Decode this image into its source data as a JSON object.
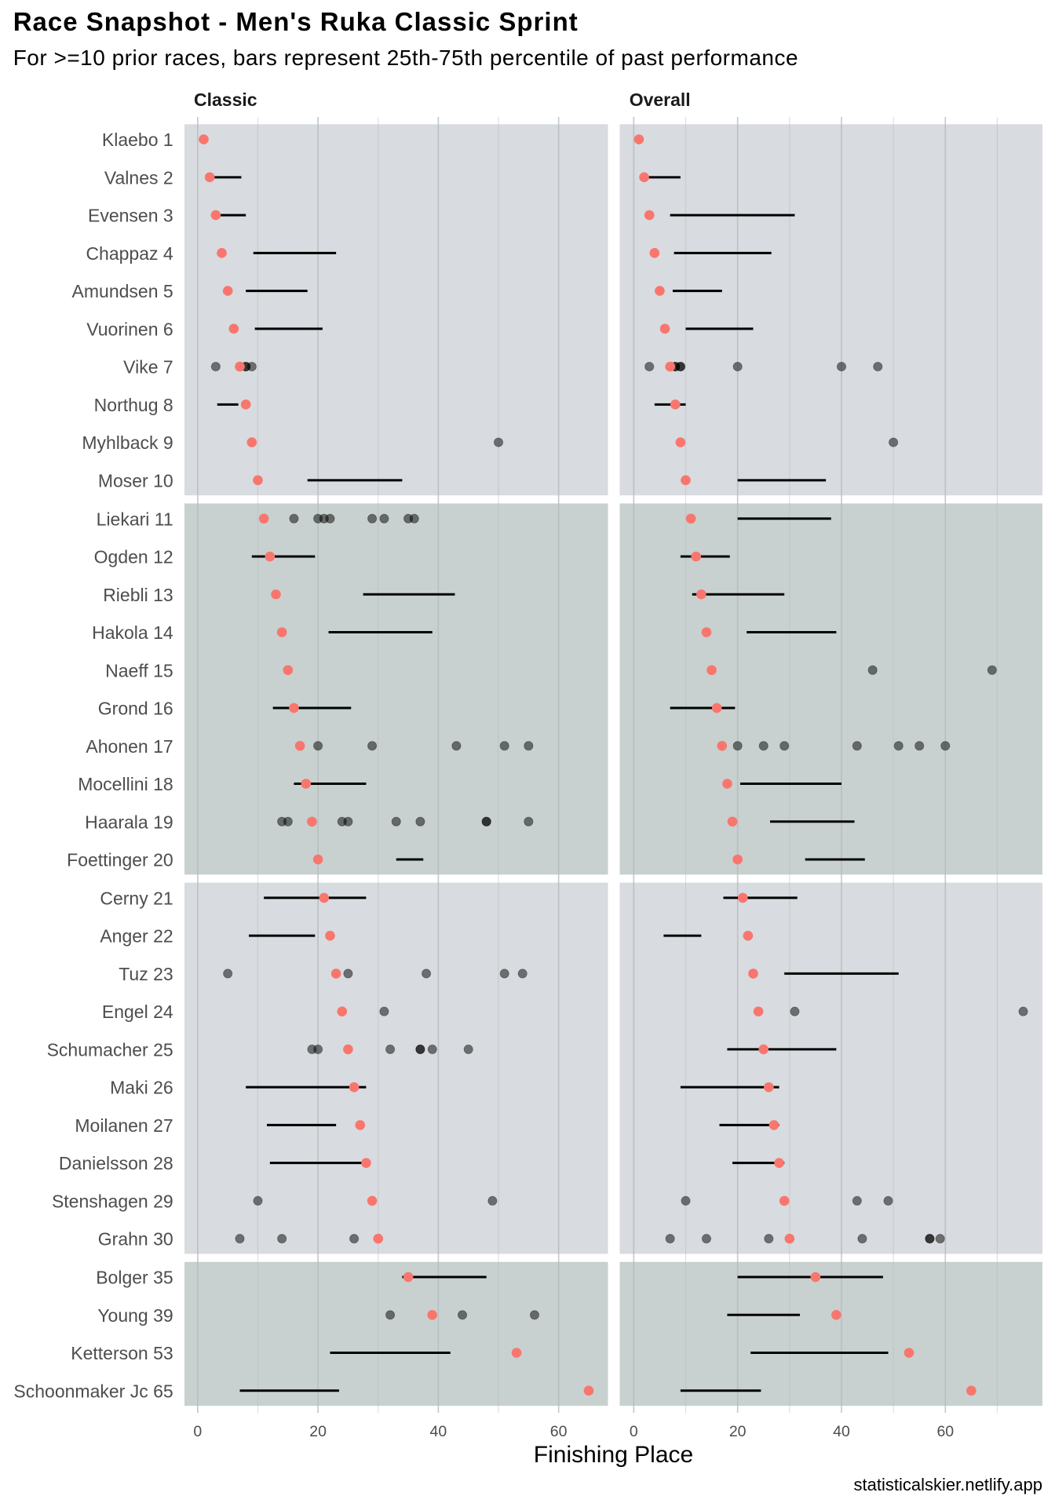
{
  "colors": {
    "current_place_point": "#f8766d",
    "past_result_point": "#000000",
    "iqr_bar": "#000000",
    "band_a": "#d8dbdf",
    "band_b": "#c8d1cf",
    "gridline": "#b4babd"
  },
  "chart_data": {
    "type": "scatter",
    "title": "Race Snapshot -  Men's Ruka Classic Sprint",
    "subtitle": "For >=10 prior races, bars represent 25th-75th percentile of past performance",
    "xlabel": "Finishing Place",
    "ylabel": "",
    "caption": "statisticalskier.netlify.app",
    "grid": true,
    "legend": "none",
    "panels": [
      {
        "key": "classic",
        "name": "Classic",
        "xlim": [
          -2.2,
          68.2
        ],
        "xticks": [
          0,
          20,
          40,
          60
        ]
      },
      {
        "key": "overall",
        "name": "Overall",
        "xlim": [
          -2.7,
          78.7
        ],
        "xticks": [
          0,
          20,
          40,
          60
        ]
      }
    ],
    "encoding": {
      "red_point": "current finishing place",
      "black_bar": "25th-75th percentile of past results (>=10 prior races)",
      "grey_points": "individual past results (<10 prior races)"
    },
    "athletes": [
      {
        "label": "Klaebo 1",
        "place": 1,
        "group": 1,
        "classic": {
          "iqr": null,
          "past": []
        },
        "overall": {
          "iqr": null,
          "past": []
        }
      },
      {
        "label": "Valnes 2",
        "place": 2,
        "group": 1,
        "classic": {
          "iqr": [
            2.25,
            7.25
          ],
          "past": []
        },
        "overall": {
          "iqr": [
            2,
            9
          ],
          "past": []
        }
      },
      {
        "label": "Evensen 3",
        "place": 3,
        "group": 1,
        "classic": {
          "iqr": [
            3,
            8
          ],
          "past": []
        },
        "overall": {
          "iqr": [
            7,
            31
          ],
          "past": []
        }
      },
      {
        "label": "Chappaz 4",
        "place": 4,
        "group": 1,
        "classic": {
          "iqr": [
            9.25,
            23
          ],
          "past": []
        },
        "overall": {
          "iqr": [
            7.75,
            26.5
          ],
          "past": []
        }
      },
      {
        "label": "Amundsen 5",
        "place": 5,
        "group": 1,
        "classic": {
          "iqr": [
            8,
            18.25
          ],
          "past": []
        },
        "overall": {
          "iqr": [
            7.5,
            17
          ],
          "past": []
        }
      },
      {
        "label": "Vuorinen 6",
        "place": 6,
        "group": 1,
        "classic": {
          "iqr": [
            9.5,
            20.75
          ],
          "past": []
        },
        "overall": {
          "iqr": [
            10,
            23
          ],
          "past": []
        }
      },
      {
        "label": "Vike 7",
        "place": 7,
        "group": 1,
        "classic": {
          "iqr": null,
          "past": [
            3,
            8,
            8,
            9
          ]
        },
        "overall": {
          "iqr": null,
          "past": [
            3,
            8,
            8,
            9,
            9,
            20,
            40,
            47
          ]
        }
      },
      {
        "label": "Northug 8",
        "place": 8,
        "group": 1,
        "classic": {
          "iqr": [
            3.25,
            6.75
          ],
          "past": []
        },
        "overall": {
          "iqr": [
            4,
            10
          ],
          "past": []
        }
      },
      {
        "label": "Myhlback 9",
        "place": 9,
        "group": 1,
        "classic": {
          "iqr": null,
          "past": [
            50
          ]
        },
        "overall": {
          "iqr": null,
          "past": [
            50
          ]
        }
      },
      {
        "label": "Moser 10",
        "place": 10,
        "group": 1,
        "classic": {
          "iqr": [
            18.25,
            34
          ],
          "past": []
        },
        "overall": {
          "iqr": [
            20,
            37
          ],
          "past": []
        }
      },
      {
        "label": "Liekari 11",
        "place": 11,
        "group": 2,
        "classic": {
          "iqr": null,
          "past": [
            16,
            20,
            21,
            22,
            29,
            31,
            35,
            36
          ]
        },
        "overall": {
          "iqr": [
            20,
            38
          ],
          "past": []
        }
      },
      {
        "label": "Ogden 12",
        "place": 12,
        "group": 2,
        "classic": {
          "iqr": [
            9,
            19.5
          ],
          "past": []
        },
        "overall": {
          "iqr": [
            9,
            18.5
          ],
          "past": []
        }
      },
      {
        "label": "Riebli 13",
        "place": 13,
        "group": 2,
        "classic": {
          "iqr": [
            27.5,
            42.75
          ],
          "past": []
        },
        "overall": {
          "iqr": [
            11.25,
            29
          ],
          "past": []
        }
      },
      {
        "label": "Hakola 14",
        "place": 14,
        "group": 2,
        "classic": {
          "iqr": [
            21.75,
            39
          ],
          "past": []
        },
        "overall": {
          "iqr": [
            21.75,
            39
          ],
          "past": []
        }
      },
      {
        "label": "Naeff 15",
        "place": 15,
        "group": 2,
        "classic": {
          "iqr": null,
          "past": []
        },
        "overall": {
          "iqr": null,
          "past": [
            46,
            69
          ]
        }
      },
      {
        "label": "Grond 16",
        "place": 16,
        "group": 2,
        "classic": {
          "iqr": [
            12.5,
            25.5
          ],
          "past": []
        },
        "overall": {
          "iqr": [
            7,
            19.5
          ],
          "past": []
        }
      },
      {
        "label": "Ahonen 17",
        "place": 17,
        "group": 2,
        "classic": {
          "iqr": null,
          "past": [
            20,
            29,
            43,
            51,
            55
          ]
        },
        "overall": {
          "iqr": null,
          "past": [
            20,
            25,
            29,
            43,
            51,
            55,
            60
          ]
        }
      },
      {
        "label": "Mocellini 18",
        "place": 18,
        "group": 2,
        "classic": {
          "iqr": [
            16,
            28
          ],
          "past": []
        },
        "overall": {
          "iqr": [
            20.5,
            40
          ],
          "past": []
        }
      },
      {
        "label": "Haarala 19",
        "place": 19,
        "group": 2,
        "classic": {
          "iqr": null,
          "past": [
            14,
            15,
            24,
            25,
            33,
            37,
            48,
            48,
            55
          ]
        },
        "overall": {
          "iqr": [
            26.25,
            42.5
          ],
          "past": []
        }
      },
      {
        "label": "Foettinger 20",
        "place": 20,
        "group": 2,
        "classic": {
          "iqr": [
            33,
            37.5
          ],
          "past": []
        },
        "overall": {
          "iqr": [
            33,
            44.5
          ],
          "past": []
        }
      },
      {
        "label": "Cerny 21",
        "place": 21,
        "group": 3,
        "classic": {
          "iqr": [
            11,
            28
          ],
          "past": []
        },
        "overall": {
          "iqr": [
            17.25,
            31.5
          ],
          "past": []
        }
      },
      {
        "label": "Anger 22",
        "place": 22,
        "group": 3,
        "classic": {
          "iqr": [
            8.5,
            19.5
          ],
          "past": []
        },
        "overall": {
          "iqr": [
            5.75,
            13
          ],
          "past": []
        }
      },
      {
        "label": "Tuz 23",
        "place": 23,
        "group": 3,
        "classic": {
          "iqr": null,
          "past": [
            5,
            25,
            38,
            51,
            54
          ]
        },
        "overall": {
          "iqr": [
            29,
            51
          ],
          "past": []
        }
      },
      {
        "label": "Engel 24",
        "place": 24,
        "group": 3,
        "classic": {
          "iqr": null,
          "past": [
            31
          ]
        },
        "overall": {
          "iqr": null,
          "past": [
            31,
            75
          ]
        }
      },
      {
        "label": "Schumacher 25",
        "place": 25,
        "group": 3,
        "classic": {
          "iqr": null,
          "past": [
            19,
            20,
            32,
            37,
            37,
            39,
            45
          ]
        },
        "overall": {
          "iqr": [
            18,
            39
          ],
          "past": []
        }
      },
      {
        "label": "Maki 26",
        "place": 26,
        "group": 3,
        "classic": {
          "iqr": [
            8,
            28
          ],
          "past": []
        },
        "overall": {
          "iqr": [
            9,
            28
          ],
          "past": []
        }
      },
      {
        "label": "Moilanen 27",
        "place": 27,
        "group": 3,
        "classic": {
          "iqr": [
            11.5,
            23
          ],
          "past": []
        },
        "overall": {
          "iqr": [
            16.5,
            28
          ],
          "past": []
        }
      },
      {
        "label": "Danielsson 28",
        "place": 28,
        "group": 3,
        "classic": {
          "iqr": [
            12,
            28
          ],
          "past": []
        },
        "overall": {
          "iqr": [
            19,
            29
          ],
          "past": []
        }
      },
      {
        "label": "Stenshagen 29",
        "place": 29,
        "group": 3,
        "classic": {
          "iqr": null,
          "past": [
            10,
            49
          ]
        },
        "overall": {
          "iqr": null,
          "past": [
            10,
            43,
            49
          ]
        }
      },
      {
        "label": "Grahn 30",
        "place": 30,
        "group": 3,
        "classic": {
          "iqr": null,
          "past": [
            7,
            14,
            26
          ]
        },
        "overall": {
          "iqr": null,
          "past": [
            7,
            14,
            26,
            44,
            57,
            57,
            59
          ]
        }
      },
      {
        "label": "Bolger 35",
        "place": 35,
        "group": 4,
        "classic": {
          "iqr": [
            34,
            48
          ],
          "past": []
        },
        "overall": {
          "iqr": [
            20,
            48
          ],
          "past": []
        }
      },
      {
        "label": "Young 39",
        "place": 39,
        "group": 4,
        "classic": {
          "iqr": null,
          "past": [
            32,
            44,
            56
          ]
        },
        "overall": {
          "iqr": [
            18,
            32
          ],
          "past": []
        }
      },
      {
        "label": "Ketterson 53",
        "place": 53,
        "group": 4,
        "classic": {
          "iqr": [
            22,
            42
          ],
          "past": []
        },
        "overall": {
          "iqr": [
            22.5,
            49
          ],
          "past": []
        }
      },
      {
        "label": "Schoonmaker Jc 65",
        "place": 65,
        "group": 4,
        "classic": {
          "iqr": [
            7,
            23.5
          ],
          "past": []
        },
        "overall": {
          "iqr": [
            9,
            24.5
          ],
          "past": []
        }
      }
    ]
  }
}
